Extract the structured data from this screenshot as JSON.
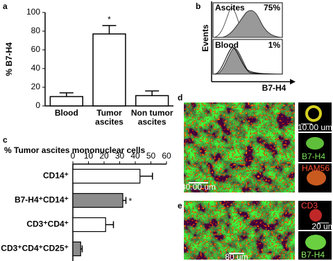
{
  "chart_data": [
    {
      "type": "bar",
      "label": "a",
      "ylabel": "% B7-H4",
      "categories": [
        "Blood",
        "Tumor\nascites",
        "Non tumor\nascites"
      ],
      "values": [
        10,
        77,
        11
      ],
      "errors": [
        4,
        9,
        5
      ],
      "significance": [
        null,
        "*",
        null
      ],
      "color": "#ffffff",
      "ylim": [
        0,
        100
      ],
      "yticks": [
        0,
        20,
        40,
        60,
        80,
        100
      ]
    },
    {
      "type": "barh",
      "label": "c",
      "title": "% Tumor ascites mononuclear cells",
      "categories": [
        "CD14⁺",
        "B7-H4⁺CD14⁺",
        "CD3⁺CD4⁺",
        "CD3⁺CD4⁺CD25⁺"
      ],
      "values": [
        43,
        32,
        21,
        5
      ],
      "errors": [
        8,
        2,
        5,
        1
      ],
      "significance": [
        null,
        "*",
        null,
        null
      ],
      "colors": [
        "#ffffff",
        "#8c8c8c",
        "#ffffff",
        "#8c8c8c"
      ],
      "xlim": [
        0,
        60
      ],
      "xticks": [
        0,
        10,
        20,
        30,
        40,
        50,
        60
      ]
    }
  ],
  "panel_b": {
    "label": "b",
    "ylabel": "Events",
    "xlabel": "B7-H4",
    "histograms": [
      {
        "name": "Ascites",
        "percent": "75%"
      },
      {
        "name": "Blood",
        "percent": "1%"
      }
    ]
  },
  "panel_d": {
    "label": "d",
    "scale_bar": "40.00 um",
    "insets": [
      "10.00 um",
      "B7-H4",
      "HAM56"
    ]
  },
  "panel_e": {
    "label": "e",
    "scale_bar": "80 um",
    "insets": [
      "CD3",
      "20 um",
      "B7-H4"
    ]
  }
}
